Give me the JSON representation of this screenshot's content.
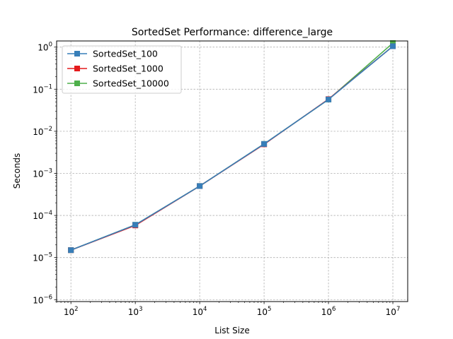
{
  "chart_data": {
    "type": "line",
    "title": "SortedSet Performance: difference_large",
    "xlabel": "List Size",
    "ylabel": "Seconds",
    "xscale": "log",
    "yscale": "log",
    "xlim": [
      60,
      17000000
    ],
    "ylim": [
      9e-07,
      1.4
    ],
    "grid": true,
    "legend_position": "upper-left",
    "x": [
      100,
      1000,
      10000,
      100000,
      1000000,
      10000000
    ],
    "xticks": [
      {
        "base": "10",
        "exp": "2"
      },
      {
        "base": "10",
        "exp": "3"
      },
      {
        "base": "10",
        "exp": "4"
      },
      {
        "base": "10",
        "exp": "5"
      },
      {
        "base": "10",
        "exp": "6"
      },
      {
        "base": "10",
        "exp": "7"
      }
    ],
    "yticks": [
      {
        "base": "10",
        "exp": "−6"
      },
      {
        "base": "10",
        "exp": "−5"
      },
      {
        "base": "10",
        "exp": "−4"
      },
      {
        "base": "10",
        "exp": "−3"
      },
      {
        "base": "10",
        "exp": "−2"
      },
      {
        "base": "10",
        "exp": "−1"
      },
      {
        "base": "10",
        "exp": "0"
      }
    ],
    "series": [
      {
        "name": "SortedSet_10000",
        "color": "#4daf4a",
        "values": [
          1.5e-05,
          6e-05,
          0.0005,
          0.005,
          0.057,
          1.25
        ]
      },
      {
        "name": "SortedSet_1000",
        "color": "#e41a1c",
        "values": [
          1.5e-05,
          5.8e-05,
          0.0005,
          0.0049,
          0.058,
          1.05
        ]
      },
      {
        "name": "SortedSet_100",
        "color": "#377eb8",
        "values": [
          1.5e-05,
          6e-05,
          0.0005,
          0.005,
          0.057,
          1.05
        ]
      }
    ],
    "legend": [
      {
        "name": "SortedSet_100",
        "color": "#377eb8"
      },
      {
        "name": "SortedSet_1000",
        "color": "#e41a1c"
      },
      {
        "name": "SortedSet_10000",
        "color": "#4daf4a"
      }
    ]
  }
}
